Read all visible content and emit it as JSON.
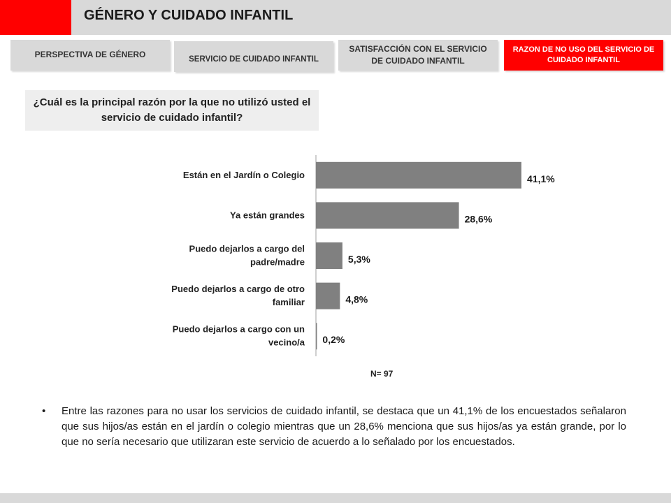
{
  "header": {
    "title": "GÉNERO Y CUIDADO INFANTIL",
    "accent_color": "#ff0000"
  },
  "tabs": [
    {
      "label": "PERSPECTIVA DE GÉNERO",
      "active": false
    },
    {
      "label": "SERVICIO DE CUIDADO INFANTIL",
      "active": false
    },
    {
      "label": "SATISFACCIÓN CON EL SERVICIO DE CUIDADO INFANTIL",
      "active": false
    },
    {
      "label": "RAZON DE NO USO DEL SERVICIO DE CUIDADO INFANTIL",
      "active": true
    }
  ],
  "question": "¿Cuál es la principal razón por la que no utilizó usted el servicio de cuidado infantil?",
  "chart_data": {
    "type": "bar",
    "orientation": "horizontal",
    "categories": [
      [
        "Están en el Jardín o Colegio"
      ],
      [
        "Ya están grandes"
      ],
      [
        "Puedo dejarlos a cargo del",
        "padre/madre"
      ],
      [
        "Puedo dejarlos a cargo de otro",
        "familiar"
      ],
      [
        "Puedo dejarlos a cargo con un",
        "vecino/a"
      ]
    ],
    "values": [
      41.1,
      28.6,
      5.3,
      4.8,
      0.2
    ],
    "value_labels": [
      "41,1%",
      "28,6%",
      "5,3%",
      "4,8%",
      "0,2%"
    ],
    "xlim": [
      0,
      41.1
    ],
    "bar_color": "#808080",
    "grid": false,
    "note": "N= 97"
  },
  "bullet": "Entre las razones para no usar los servicios de cuidado infantil, se destaca que un 41,1% de los encuestados señalaron que sus hijos/as están en el jardín o colegio mientras que un 28,6% menciona que sus hijos/as ya están grande, por lo que no sería necesario que utilizaran este servicio de acuerdo a lo señalado por los encuestados.",
  "bullet_symbol": "•"
}
